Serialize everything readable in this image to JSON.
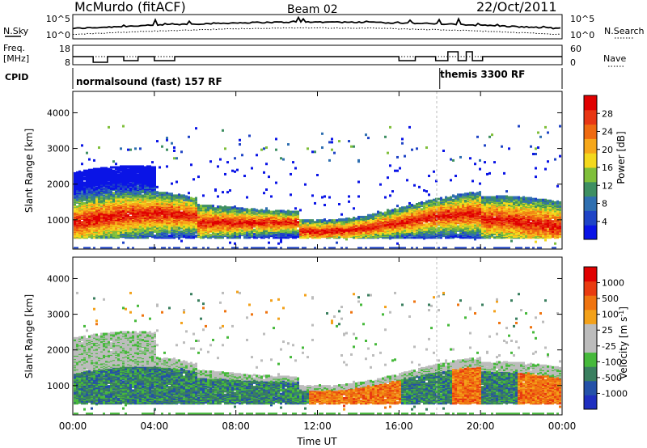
{
  "header": {
    "station": "McMurdo (fitACF)",
    "beam": "Beam 02",
    "date": "22/Oct/2011"
  },
  "noise_panel": {
    "left_label": "N.Sky",
    "right_label": "N.Search",
    "left_ticks": [
      "10^5",
      "10^0"
    ],
    "right_ticks": [
      "10^5",
      "10^0"
    ]
  },
  "freq_panel": {
    "left_label_1": "Freq.",
    "left_label_2": "[MHz]",
    "right_label": "Nave",
    "left_ticks": [
      "18",
      "8"
    ],
    "right_ticks": [
      "60",
      "0"
    ]
  },
  "cpid": {
    "label": "CPID",
    "segments": [
      {
        "name": "normalsound (fast) 157 RF",
        "start_hour": 0
      },
      {
        "name": "themis 3300 RF",
        "start_hour": 18
      }
    ]
  },
  "colors": {
    "power": [
      "#0a14e6",
      "#1f44c6",
      "#2f6fb0",
      "#3e8f62",
      "#7fbf3a",
      "#f3d81d",
      "#f6a71a",
      "#ef6a10",
      "#e83613",
      "#e00000"
    ],
    "velocity": [
      "#1f2fbf",
      "#2451a8",
      "#3a7f5f",
      "#46b93b",
      "#bcbcbc",
      "#bcbcbc",
      "#f3a11a",
      "#ef7410",
      "#e93b10",
      "#e00000"
    ]
  },
  "chart_data": [
    {
      "type": "heatmap",
      "title": "Power",
      "ylabel": "Slant Range [km]",
      "xlabel": "",
      "yticks": [
        1000,
        2000,
        3000,
        4000
      ],
      "ylim": [
        180,
        4600
      ],
      "xlim_hours": [
        0,
        24
      ],
      "colorbar": {
        "label": "Power [dB]",
        "ticks": [
          4,
          8,
          12,
          16,
          20,
          24,
          28
        ],
        "range": [
          0,
          32
        ]
      }
    },
    {
      "type": "heatmap",
      "title": "Velocity",
      "ylabel": "Slant Range [km]",
      "xlabel": "Time UT",
      "yticks": [
        1000,
        2000,
        3000,
        4000
      ],
      "ylim": [
        180,
        4600
      ],
      "xlim_hours": [
        0,
        24
      ],
      "xticks": [
        "00:00",
        "04:00",
        "08:00",
        "12:00",
        "16:00",
        "20:00",
        "00:00"
      ],
      "colorbar": {
        "label": "Velocity [m s",
        "label_sup": "-1",
        "label_end": "]",
        "ticks": [
          "1000",
          "500",
          "100",
          "25",
          "-25",
          "-100",
          "-500",
          "-1000"
        ]
      }
    }
  ]
}
